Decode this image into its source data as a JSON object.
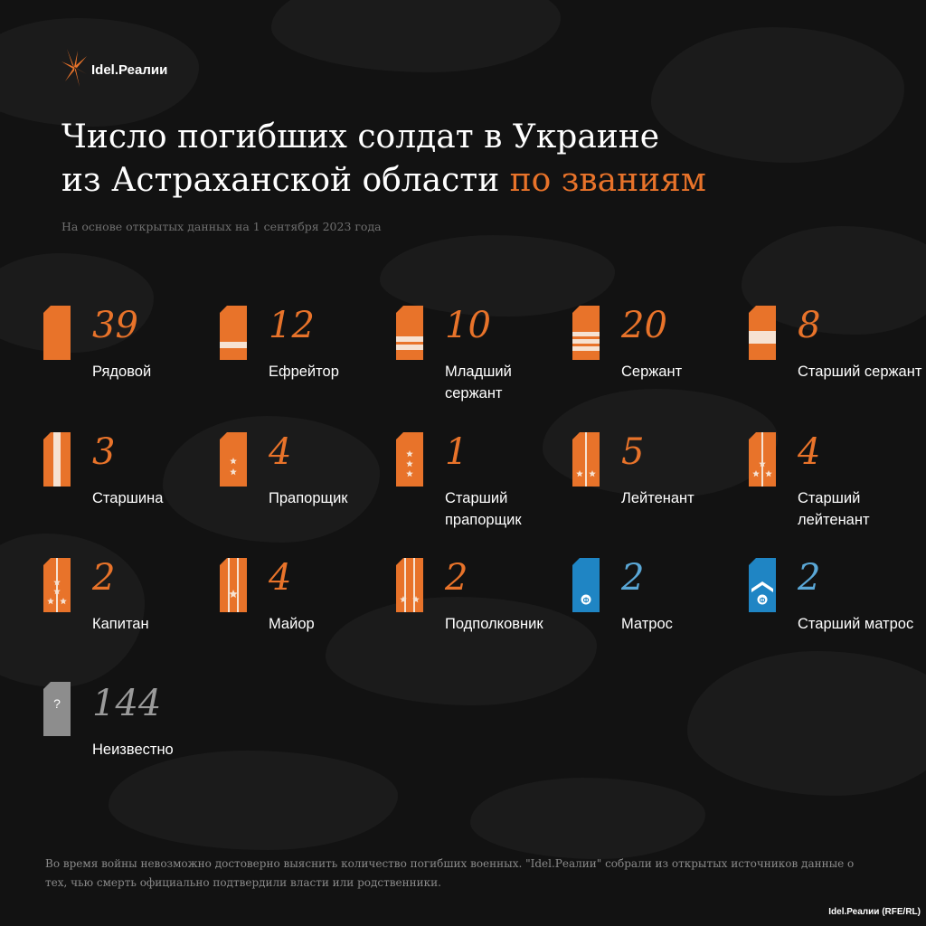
{
  "brand": {
    "logo_text": "Idel.Реалии",
    "credit": "Idel.Реалии (RFE/RL)"
  },
  "title": {
    "line1": "Число погибших солдат в Украине",
    "line2_plain": "из Астраханской области ",
    "line2_accent": "по званиям"
  },
  "subtitle": "На основе открытых данных на 1 сентября 2023 года",
  "colors": {
    "accent": "#e8732a",
    "navy": "#1f85c4",
    "unknown": "#8d8d8d",
    "background": "#121212"
  },
  "ranks": [
    {
      "count": "39",
      "label": "Рядовой",
      "strap": "plain",
      "color": "orange"
    },
    {
      "count": "12",
      "label": "Ефрейтор",
      "strap": "stripe1",
      "color": "orange"
    },
    {
      "count": "10",
      "label": "Младший сержант",
      "strap": "stripe2",
      "color": "orange"
    },
    {
      "count": "20",
      "label": "Сержант",
      "strap": "stripe3",
      "color": "orange"
    },
    {
      "count": "8",
      "label": "Старший сержант",
      "strap": "wide-stripe",
      "color": "orange"
    },
    {
      "count": "3",
      "label": "Старшина",
      "strap": "vertical-stripe",
      "color": "orange"
    },
    {
      "count": "4",
      "label": "Прапорщик",
      "strap": "two-stars-vertical",
      "color": "orange"
    },
    {
      "count": "1",
      "label": "Старший прапорщик",
      "strap": "three-stars-vertical",
      "color": "orange"
    },
    {
      "count": "5",
      "label": "Лейтенант",
      "strap": "two-stars-stripe",
      "color": "orange"
    },
    {
      "count": "4",
      "label": "Старший лейтенант",
      "strap": "three-stars-stripe",
      "color": "orange"
    },
    {
      "count": "2",
      "label": "Капитан",
      "strap": "four-stars-stripe",
      "color": "orange"
    },
    {
      "count": "4",
      "label": "Майор",
      "strap": "one-star-two-stripes",
      "color": "orange"
    },
    {
      "count": "2",
      "label": "Подполковник",
      "strap": "two-stars-two-stripes",
      "color": "orange"
    },
    {
      "count": "2",
      "label": "Матрос",
      "strap": "navy-plain",
      "color": "blue"
    },
    {
      "count": "2",
      "label": "Старший матрос",
      "strap": "navy-chevron",
      "color": "blue"
    },
    {
      "count": "144",
      "label": "Неизвестно",
      "strap": "unknown",
      "color": "grey",
      "strap_text": "?"
    }
  ],
  "note": "Во время войны невозможно достоверно выяснить количество погибших военных. \"Idel.Реалии\" собрали из открытых источников данные о тех, чью смерть официально подтвердили власти или родственники."
}
